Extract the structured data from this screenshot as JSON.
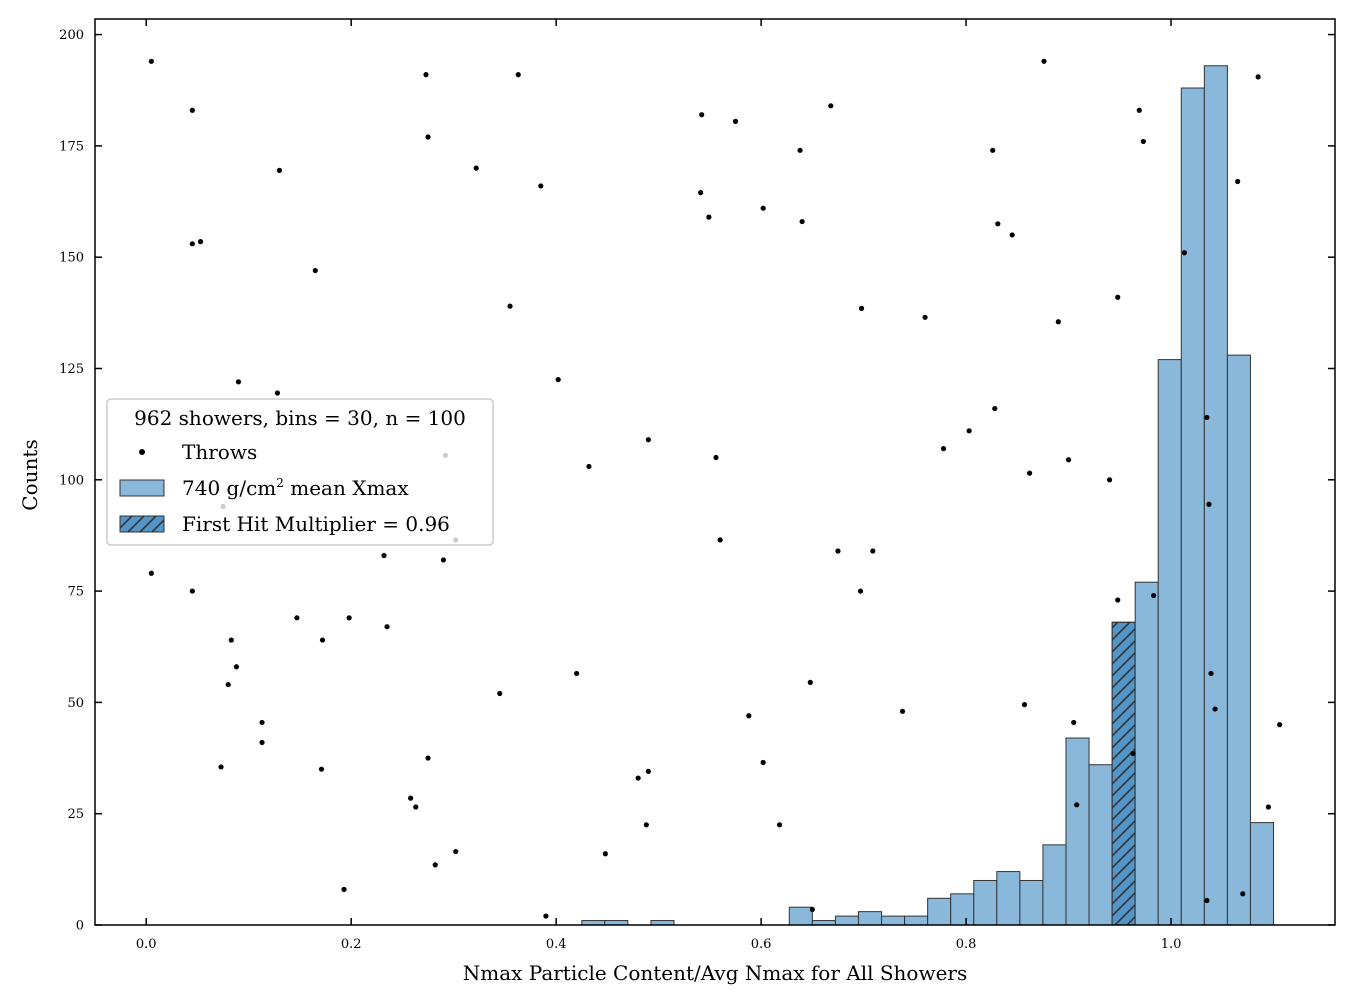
{
  "chart_data": {
    "type": "bar",
    "xlabel": "Nmax Particle Content/Avg Nmax for All Showers",
    "ylabel": "Counts",
    "xlim": [
      -0.05,
      1.16
    ],
    "ylim": [
      0,
      203.5
    ],
    "x_ticks": [
      0.0,
      0.2,
      0.4,
      0.6,
      0.8,
      1.0
    ],
    "x_tick_labels": [
      "0.0",
      "0.2",
      "0.4",
      "0.6",
      "0.8",
      "1.0"
    ],
    "y_ticks": [
      0,
      25,
      50,
      75,
      100,
      125,
      150,
      175,
      200
    ],
    "y_tick_labels": [
      "0",
      "25",
      "50",
      "75",
      "100",
      "125",
      "150",
      "175",
      "200"
    ],
    "grid": false,
    "legend": {
      "placement": "center-left",
      "title": "962 showers, bins = 30, n = 100",
      "throws_label": "Throws",
      "hist_label_main": "740 g/cm",
      "hist_label_sup": "2",
      "hist_label_rest": " mean Xmax",
      "hatch_label": "First Hit Multiplier = 0.96"
    },
    "colors": {
      "hist": "#8ab8db",
      "hatch_bar": "#5295c9",
      "edge": "#333333",
      "points": "#000000"
    },
    "histogram": {
      "name": "740 g/cm² mean Xmax",
      "bin_edges": [
        0.425,
        0.4475,
        0.47,
        0.4925,
        0.515,
        0.5375,
        0.56,
        0.5825,
        0.605,
        0.6275,
        0.65,
        0.6725,
        0.695,
        0.7175,
        0.74,
        0.7625,
        0.785,
        0.8075,
        0.83,
        0.8525,
        0.875,
        0.8975,
        0.92,
        0.9425,
        0.965,
        0.9875,
        1.01,
        1.0325,
        1.055,
        1.0775,
        1.1
      ],
      "counts": [
        1,
        1,
        0,
        1,
        0,
        0,
        0,
        0,
        0,
        4,
        1,
        2,
        3,
        2,
        2,
        6,
        7,
        10,
        12,
        10,
        18,
        42,
        36,
        68,
        77,
        127,
        188,
        193,
        128,
        23
      ],
      "hatched_bin_index": 23
    },
    "throws": {
      "name": "Throws",
      "points": [
        [
          0.005,
          194
        ],
        [
          0.045,
          183
        ],
        [
          0.045,
          153
        ],
        [
          0.053,
          153.5
        ],
        [
          0.13,
          169.5
        ],
        [
          0.165,
          147
        ],
        [
          0.09,
          122
        ],
        [
          0.128,
          119.5
        ],
        [
          0.005,
          79
        ],
        [
          0.045,
          75
        ],
        [
          0.075,
          94
        ],
        [
          0.083,
          64
        ],
        [
          0.088,
          58
        ],
        [
          0.08,
          54
        ],
        [
          0.113,
          45.5
        ],
        [
          0.113,
          41
        ],
        [
          0.073,
          35.5
        ],
        [
          0.147,
          69
        ],
        [
          0.172,
          64
        ],
        [
          0.198,
          69
        ],
        [
          0.171,
          35
        ],
        [
          0.193,
          8
        ],
        [
          0.235,
          67
        ],
        [
          0.232,
          83
        ],
        [
          0.273,
          191
        ],
        [
          0.275,
          177
        ],
        [
          0.322,
          170
        ],
        [
          0.363,
          191
        ],
        [
          0.385,
          166
        ],
        [
          0.355,
          139
        ],
        [
          0.402,
          122.5
        ],
        [
          0.292,
          105.5
        ],
        [
          0.302,
          86.5
        ],
        [
          0.29,
          82
        ],
        [
          0.275,
          37.5
        ],
        [
          0.258,
          28.5
        ],
        [
          0.263,
          26.5
        ],
        [
          0.282,
          13.5
        ],
        [
          0.302,
          16.5
        ],
        [
          0.345,
          52
        ],
        [
          0.39,
          2
        ],
        [
          0.42,
          56.5
        ],
        [
          0.432,
          103
        ],
        [
          0.448,
          16
        ],
        [
          0.48,
          33
        ],
        [
          0.49,
          34.5
        ],
        [
          0.488,
          22.5
        ],
        [
          0.49,
          109
        ],
        [
          0.542,
          182
        ],
        [
          0.541,
          164.5
        ],
        [
          0.549,
          159
        ],
        [
          0.575,
          180.5
        ],
        [
          0.556,
          105
        ],
        [
          0.56,
          86.5
        ],
        [
          0.602,
          161
        ],
        [
          0.588,
          47
        ],
        [
          0.602,
          36.5
        ],
        [
          0.618,
          22.5
        ],
        [
          0.638,
          174
        ],
        [
          0.64,
          158
        ],
        [
          0.648,
          54.5
        ],
        [
          0.65,
          3.5
        ],
        [
          0.668,
          184
        ],
        [
          0.675,
          84
        ],
        [
          0.698,
          138.5
        ],
        [
          0.697,
          75
        ],
        [
          0.709,
          84
        ],
        [
          0.738,
          48
        ],
        [
          0.76,
          136.5
        ],
        [
          0.778,
          107
        ],
        [
          0.803,
          111
        ],
        [
          0.826,
          174
        ],
        [
          0.831,
          157.5
        ],
        [
          0.845,
          155
        ],
        [
          0.828,
          116
        ],
        [
          0.862,
          101.5
        ],
        [
          0.857,
          49.5
        ],
        [
          0.876,
          194
        ],
        [
          0.89,
          135.5
        ],
        [
          0.9,
          104.5
        ],
        [
          0.905,
          45.5
        ],
        [
          0.908,
          27
        ],
        [
          0.94,
          100
        ],
        [
          0.948,
          141
        ],
        [
          0.948,
          73
        ],
        [
          0.963,
          38.5
        ],
        [
          0.969,
          183
        ],
        [
          0.973,
          176
        ],
        [
          0.983,
          74
        ],
        [
          1.013,
          151
        ],
        [
          1.035,
          114
        ],
        [
          1.037,
          94.5
        ],
        [
          1.039,
          56.5
        ],
        [
          1.043,
          48.5
        ],
        [
          1.035,
          5.5
        ],
        [
          1.065,
          167
        ],
        [
          1.07,
          7
        ],
        [
          1.085,
          190.5
        ],
        [
          1.095,
          26.5
        ],
        [
          1.106,
          45
        ]
      ]
    }
  }
}
